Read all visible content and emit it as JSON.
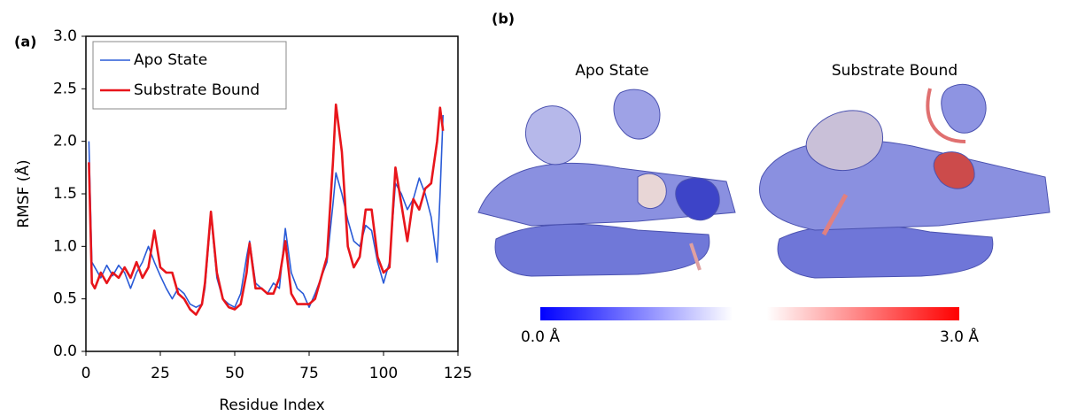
{
  "chart_data": {
    "type": "line",
    "panel_label": "(a)",
    "x_label": "Residue Index",
    "y_label": "RMSF (Å)",
    "xlim": [
      0,
      125
    ],
    "xticks": [
      0,
      25,
      50,
      75,
      100,
      125
    ],
    "ylim": [
      0,
      3
    ],
    "yticks": [
      {
        "value": 0,
        "label": "0.0"
      },
      0.5,
      {
        "value": 1,
        "label": "1.0"
      },
      1.5,
      {
        "value": 2,
        "label": "2.0"
      },
      2.5,
      {
        "value": 3,
        "label": "3.0"
      }
    ],
    "legend": "upper left",
    "x": [
      1,
      2,
      3,
      5,
      7,
      9,
      11,
      13,
      15,
      17,
      19,
      21,
      23,
      25,
      27,
      29,
      31,
      33,
      35,
      37,
      39,
      40,
      42,
      44,
      46,
      48,
      50,
      52,
      54,
      55,
      57,
      59,
      61,
      63,
      65,
      67,
      69,
      71,
      73,
      75,
      77,
      79,
      81,
      83,
      84,
      86,
      88,
      90,
      92,
      94,
      96,
      98,
      100,
      102,
      104,
      106,
      108,
      110,
      112,
      114,
      116,
      118,
      119,
      120
    ],
    "series": [
      {
        "name": "Apo State",
        "color": "#2a5bd7",
        "values": [
          2.0,
          0.85,
          0.8,
          0.7,
          0.82,
          0.72,
          0.82,
          0.75,
          0.6,
          0.75,
          0.85,
          1.0,
          0.85,
          0.72,
          0.6,
          0.5,
          0.6,
          0.55,
          0.45,
          0.42,
          0.45,
          0.6,
          1.3,
          0.7,
          0.5,
          0.45,
          0.42,
          0.55,
          0.9,
          1.05,
          0.65,
          0.6,
          0.55,
          0.65,
          0.6,
          1.17,
          0.75,
          0.6,
          0.55,
          0.42,
          0.55,
          0.7,
          0.85,
          1.4,
          1.7,
          1.5,
          1.25,
          1.05,
          1.0,
          1.2,
          1.15,
          0.85,
          0.65,
          0.85,
          1.6,
          1.5,
          1.35,
          1.45,
          1.65,
          1.5,
          1.28,
          0.85,
          1.5,
          2.25
        ]
      },
      {
        "name": "Substrate Bound",
        "color": "#e8151b",
        "values": [
          1.8,
          0.65,
          0.6,
          0.75,
          0.65,
          0.75,
          0.7,
          0.8,
          0.7,
          0.85,
          0.7,
          0.8,
          1.15,
          0.8,
          0.75,
          0.75,
          0.55,
          0.5,
          0.4,
          0.35,
          0.45,
          0.65,
          1.33,
          0.75,
          0.5,
          0.42,
          0.4,
          0.45,
          0.75,
          1.03,
          0.6,
          0.6,
          0.55,
          0.55,
          0.7,
          1.05,
          0.55,
          0.45,
          0.45,
          0.45,
          0.5,
          0.7,
          0.9,
          1.8,
          2.35,
          1.9,
          1.0,
          0.8,
          0.9,
          1.35,
          1.35,
          0.9,
          0.75,
          0.8,
          1.75,
          1.4,
          1.05,
          1.45,
          1.35,
          1.55,
          1.6,
          2.0,
          2.32,
          2.1
        ]
      }
    ]
  },
  "panel_b": {
    "panel_label": "(b)",
    "titles": [
      "Apo State",
      "Substrate Bound"
    ],
    "colorbar": {
      "lim": [
        0,
        3
      ],
      "ticks": [
        {
          "value": 0,
          "label": "0.0 Å"
        },
        {
          "value": 3,
          "label": "3.0 Å"
        }
      ]
    }
  }
}
